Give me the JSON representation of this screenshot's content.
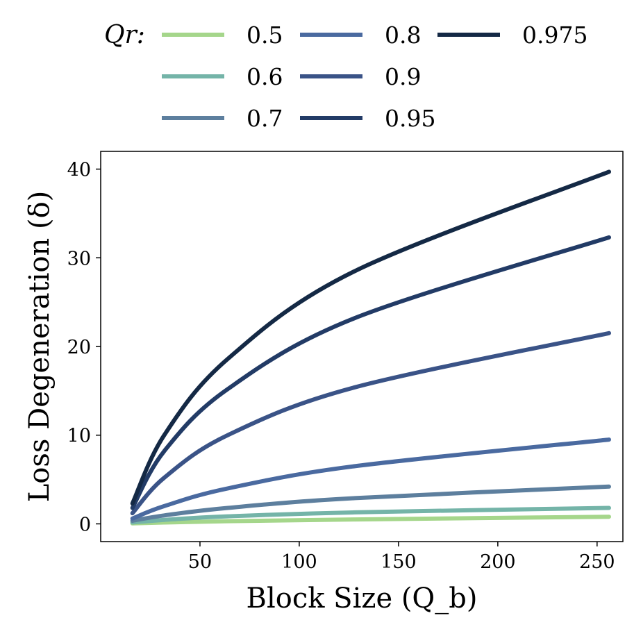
{
  "chart_data": {
    "type": "line",
    "xlabel": "Block Size (Q_b)",
    "ylabel": "Loss Degeneration (δ)",
    "xlim": [
      0,
      263
    ],
    "ylim": [
      -2,
      42
    ],
    "xticks": [
      50,
      100,
      150,
      200,
      250
    ],
    "yticks": [
      0,
      10,
      20,
      30,
      40
    ],
    "grid": false,
    "legend": {
      "title": "Qr:",
      "placement": "top-above-plot",
      "columns": 3
    },
    "x": [
      16,
      32,
      64,
      128,
      256
    ],
    "series": [
      {
        "name": "0.5",
        "color": "#a5d68b",
        "values": [
          0.05,
          0.15,
          0.3,
          0.5,
          0.8
        ]
      },
      {
        "name": "0.6",
        "color": "#74b4a8",
        "values": [
          0.15,
          0.45,
          0.85,
          1.3,
          1.8
        ]
      },
      {
        "name": "0.7",
        "color": "#5d7f9e",
        "values": [
          0.35,
          0.95,
          1.8,
          2.9,
          4.2
        ]
      },
      {
        "name": "0.8",
        "color": "#4a6aa0",
        "values": [
          0.6,
          2.0,
          4.0,
          6.5,
          9.5
        ]
      },
      {
        "name": "0.9",
        "color": "#3a5387",
        "values": [
          1.2,
          5.2,
          10.0,
          15.4,
          21.5
        ]
      },
      {
        "name": "0.95",
        "color": "#223b66",
        "values": [
          1.8,
          8.2,
          15.2,
          23.2,
          32.3
        ]
      },
      {
        "name": "0.975",
        "color": "#142945",
        "values": [
          2.3,
          10.0,
          18.6,
          28.5,
          39.7
        ]
      }
    ]
  }
}
